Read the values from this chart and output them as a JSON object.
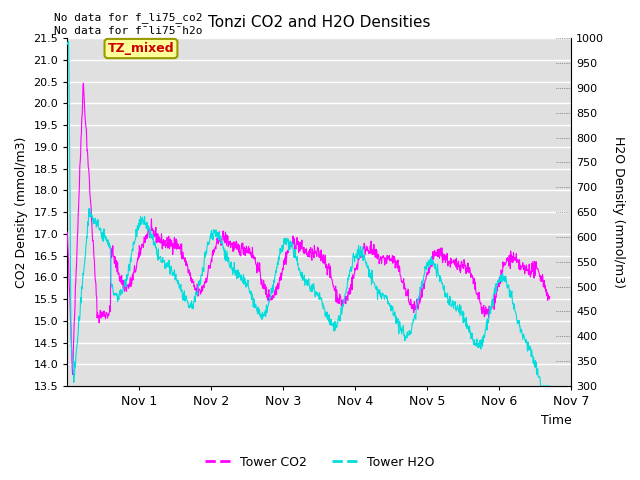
{
  "title": "Tonzi CO2 and H2O Densities",
  "xlabel": "Time",
  "ylabel_left": "CO2 Density (mmol/m3)",
  "ylabel_right": "H2O Density (mmol/m3)",
  "left_ylim": [
    13.5,
    21.5
  ],
  "right_ylim": [
    300,
    1000
  ],
  "text_no_data_1": "No data for f_li75_co2",
  "text_no_data_2": "No data for f¯li75¯h2o",
  "annotation_text": "TZ_mixed",
  "co2_color": "#ff00ff",
  "h2o_color": "#00dddd",
  "legend_co2": "Tower CO2",
  "legend_h2o": "Tower H2O",
  "plot_bg_color": "#e0e0e0",
  "fig_bg_color": "#ffffff",
  "grid_color": "#ffffff"
}
